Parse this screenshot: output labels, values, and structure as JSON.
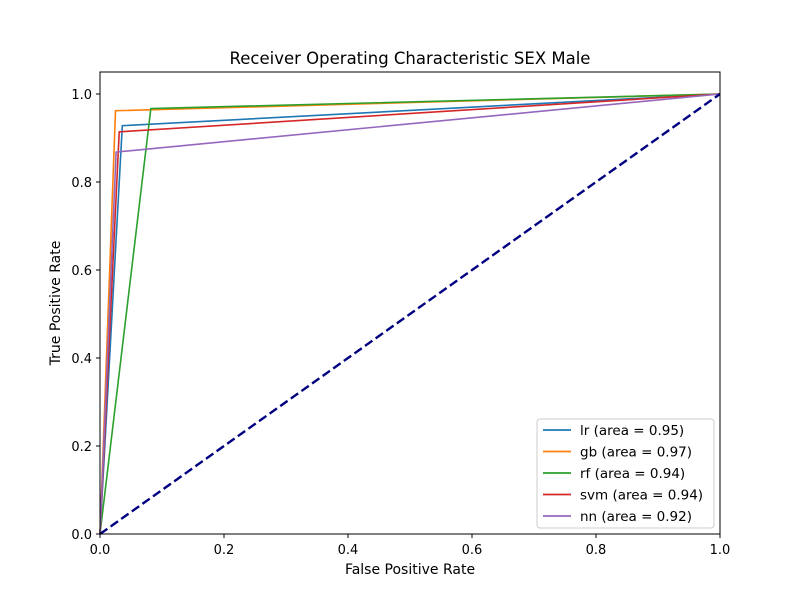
{
  "chart_data": {
    "type": "line",
    "title": "Receiver Operating Characteristic SEX  Male",
    "xlabel": "False Positive Rate",
    "ylabel": "True Positive Rate",
    "xlim": [
      0.0,
      1.0
    ],
    "ylim": [
      0.0,
      1.05
    ],
    "x_ticks": [
      "0.0",
      "0.2",
      "0.4",
      "0.6",
      "0.8",
      "1.0"
    ],
    "y_ticks": [
      "0.0",
      "0.2",
      "0.4",
      "0.6",
      "0.8",
      "1.0"
    ],
    "grid": false,
    "legend_position": "lower-right",
    "series": [
      {
        "name": "lr (area = 0.95)",
        "color": "#1f77b4",
        "x": [
          0.0,
          0.036,
          1.0
        ],
        "y": [
          0.0,
          0.928,
          1.0
        ]
      },
      {
        "name": "gb (area = 0.97)",
        "color": "#ff7f0e",
        "x": [
          0.0,
          0.025,
          1.0
        ],
        "y": [
          0.0,
          0.962,
          1.0
        ]
      },
      {
        "name": "rf (area = 0.94)",
        "color": "#2ca02c",
        "x": [
          0.0,
          0.082,
          1.0
        ],
        "y": [
          0.0,
          0.967,
          1.0
        ]
      },
      {
        "name": "svm (area = 0.94)",
        "color": "#d62728",
        "x": [
          0.0,
          0.031,
          1.0
        ],
        "y": [
          0.0,
          0.914,
          1.0
        ]
      },
      {
        "name": "nn (area = 0.92)",
        "color": "#9467bd",
        "x": [
          0.0,
          0.026,
          1.0
        ],
        "y": [
          0.0,
          0.868,
          1.0
        ]
      }
    ],
    "reference_line": {
      "color": "#000080",
      "style": "dashed",
      "x": [
        0.0,
        1.0
      ],
      "y": [
        0.0,
        1.0
      ]
    }
  }
}
